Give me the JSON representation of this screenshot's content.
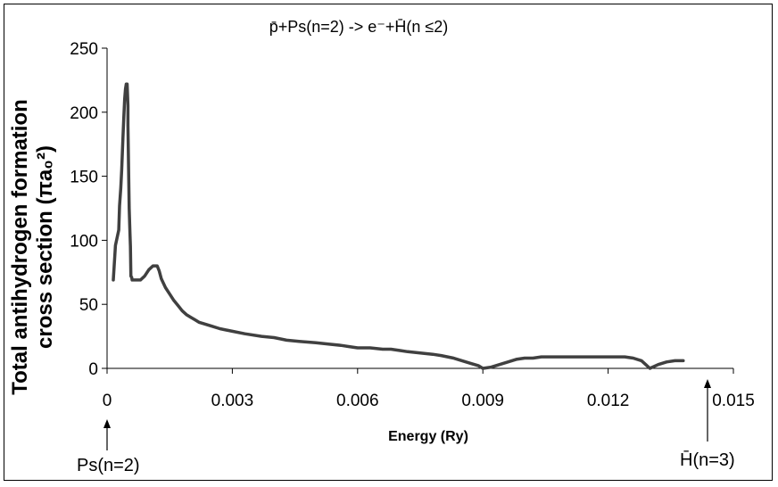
{
  "chart_data": {
    "type": "line",
    "title": "p̄+Ps(n=2) -> e⁻+H̄(n ≤2)",
    "xlabel": "Energy (Ry)",
    "ylabel_line1": "Total antihydrogen formation",
    "ylabel_line2": "cross section (πa₀²)",
    "xlim": [
      0,
      0.015
    ],
    "ylim": [
      0,
      250
    ],
    "x_ticks": [
      "0",
      "0.003",
      "0.006",
      "0.009",
      "0.012",
      "0.015"
    ],
    "y_ticks": [
      "0",
      "50",
      "100",
      "150",
      "200",
      "250"
    ],
    "grid": false,
    "line_color": "#404040",
    "series": [
      {
        "x": [
          0.00015,
          0.0002,
          0.00028,
          0.0003,
          0.00033,
          0.00035,
          0.00038,
          0.0004,
          0.00042,
          0.00044,
          0.00046,
          0.00048,
          0.0005,
          0.0005,
          0.00052,
          0.00053,
          0.00055,
          0.00056,
          0.00057,
          0.00059,
          0.0006,
          0.0008,
          0.0009,
          0.001,
          0.0011,
          0.0012,
          0.00125,
          0.0013,
          0.0014,
          0.0015,
          0.0016,
          0.0017,
          0.0018,
          0.0019,
          0.002,
          0.0021,
          0.0022,
          0.0023,
          0.0025,
          0.0027,
          0.003,
          0.0033,
          0.0037,
          0.004,
          0.0043,
          0.0046,
          0.005,
          0.0053,
          0.0056,
          0.0058,
          0.006,
          0.0063,
          0.0066,
          0.0068,
          0.007,
          0.0072,
          0.0075,
          0.0078,
          0.008,
          0.0083,
          0.0085,
          0.0087,
          0.0089,
          0.009,
          0.0092,
          0.0094,
          0.0096,
          0.0098,
          0.01,
          0.0102,
          0.0104,
          0.0106,
          0.011,
          0.0114,
          0.0118,
          0.012,
          0.0124,
          0.0126,
          0.0128,
          0.0129,
          0.013,
          0.0132,
          0.0134,
          0.0136,
          0.0138
        ],
        "y": [
          69,
          96,
          108,
          127,
          141,
          155,
          180,
          195,
          210,
          218,
          222,
          222,
          205,
          190,
          148,
          125,
          105,
          95,
          72,
          71,
          69,
          69,
          72,
          77,
          80,
          80,
          76,
          70,
          63,
          58,
          53,
          49,
          45,
          42,
          40,
          38,
          36,
          35,
          33,
          31,
          29,
          27,
          25,
          24,
          22,
          21,
          20,
          19,
          18,
          17,
          16,
          16,
          15,
          15,
          14,
          13,
          12,
          11,
          10,
          8,
          6,
          4,
          2,
          0,
          1,
          3,
          5,
          7,
          8,
          8,
          9,
          9,
          9,
          9,
          9,
          9,
          9,
          8,
          6,
          3,
          0,
          3,
          5,
          6,
          6
        ]
      }
    ]
  },
  "annotations": {
    "left_arrow_label": "Ps(n=2)",
    "right_arrow_label": "H̄(n=3)"
  }
}
